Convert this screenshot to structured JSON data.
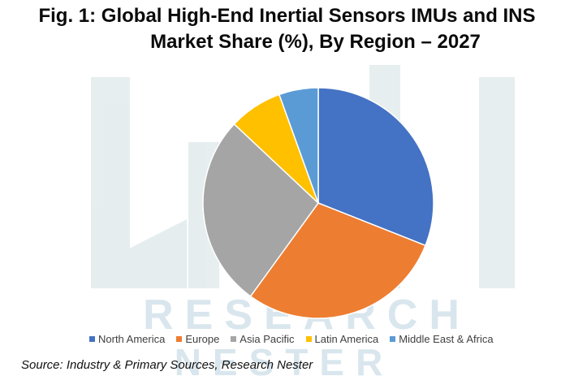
{
  "title": {
    "line1": "Fig. 1: Global High-End Inertial Sensors IMUs and INS",
    "line2": "Market Share (%), By Region – 2027"
  },
  "watermark": {
    "line1": "RESEARCH",
    "line2": "NESTER",
    "color": "#d7e4e6"
  },
  "chart_data": {
    "type": "pie",
    "title": "Fig. 1: Global High-End Inertial Sensors IMUs and INS Market Share (%), By Region – 2027",
    "categories": [
      "North America",
      "Europe",
      "Asia Pacific",
      "Latin America",
      "Middle East & Africa"
    ],
    "values": [
      31,
      29,
      27,
      7.5,
      5.5
    ],
    "colors": [
      "#4472c4",
      "#ed7d31",
      "#a5a5a5",
      "#ffc000",
      "#5b9bd5"
    ],
    "legend_position": "bottom",
    "start": "12 o'clock, clockwise"
  },
  "source": "Source: Industry & Primary Sources, Research Nester"
}
